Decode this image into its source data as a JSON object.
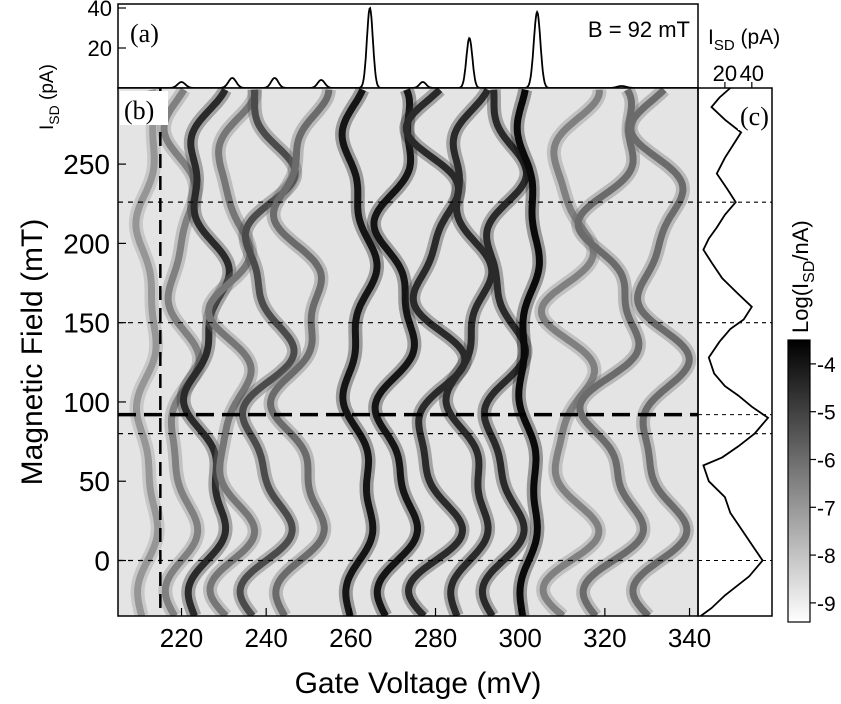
{
  "chart_data": [
    {
      "panel": "(a)",
      "type": "line",
      "ylabel": "I",
      "ylabel_sub": "SD",
      "ylabel_unit": " (pA)",
      "yticks": [
        20,
        40
      ],
      "ylim": [
        0,
        42
      ],
      "xlim": [
        205,
        342
      ],
      "annotation": "B = 92 mT",
      "peaks": [
        {
          "x": 220,
          "y": 3,
          "w": 1.3
        },
        {
          "x": 232,
          "y": 5,
          "w": 1.3
        },
        {
          "x": 242,
          "y": 5,
          "w": 1.2
        },
        {
          "x": 253,
          "y": 4,
          "w": 1.2
        },
        {
          "x": 264.5,
          "y": 40,
          "w": 1.0
        },
        {
          "x": 277,
          "y": 3,
          "w": 1.1
        },
        {
          "x": 288,
          "y": 25,
          "w": 1.0
        },
        {
          "x": 304,
          "y": 38,
          "w": 1.1
        },
        {
          "x": 324,
          "y": 1,
          "w": 1.5
        }
      ]
    },
    {
      "panel": "(b)",
      "type": "heatmap",
      "xlabel": "Gate Voltage (mV)",
      "ylabel": "Magnetic Field (mT)",
      "xticks": [
        220,
        240,
        260,
        280,
        300,
        320,
        340
      ],
      "yticks": [
        0,
        50,
        100,
        150,
        200,
        250
      ],
      "xlim": [
        205,
        342
      ],
      "ylim": [
        -35,
        298
      ],
      "colorbar": {
        "label": "Log(I",
        "label_sub": "SD",
        "label_end": "/nA)",
        "ticks": [
          -4,
          -5,
          -6,
          -7,
          -8,
          -9
        ],
        "range": [
          -9.4,
          -3.5
        ]
      },
      "dashed_lines_mT": [
        0,
        80,
        150,
        226
      ],
      "thick_dashed_line_mT": 92,
      "thick_dashed_vertical_mV": 215,
      "ridges": [
        {
          "x": 212,
          "d": 0.35,
          "a": 2,
          "p": 120
        },
        {
          "x": 220,
          "d": 0.45,
          "a": 3,
          "p": 100
        },
        {
          "x": 226,
          "d": 0.85,
          "a": 4,
          "p": 140
        },
        {
          "x": 232,
          "d": 0.5,
          "a": 4,
          "p": 90
        },
        {
          "x": 240,
          "d": 0.7,
          "a": 5,
          "p": 110
        },
        {
          "x": 248,
          "d": 0.55,
          "a": 5,
          "p": 130
        },
        {
          "x": 262,
          "d": 0.95,
          "a": 3,
          "p": 150
        },
        {
          "x": 271,
          "d": 0.95,
          "a": 4,
          "p": 120
        },
        {
          "x": 280,
          "d": 0.85,
          "a": 5,
          "p": 100
        },
        {
          "x": 288,
          "d": 0.85,
          "a": 4,
          "p": 140
        },
        {
          "x": 296,
          "d": 0.85,
          "a": 4,
          "p": 110
        },
        {
          "x": 302,
          "d": 1.0,
          "a": 2,
          "p": 160
        },
        {
          "x": 312,
          "d": 0.45,
          "a": 5,
          "p": 90
        },
        {
          "x": 322,
          "d": 0.55,
          "a": 6,
          "p": 120
        },
        {
          "x": 333,
          "d": 0.55,
          "a": 5,
          "p": 100
        }
      ]
    },
    {
      "panel": "(c)",
      "type": "line",
      "xlabel": "I",
      "xlabel_sub": "SD",
      "xlabel_unit": " (pA)",
      "xticks": [
        20,
        40
      ],
      "xlim": [
        0,
        55
      ],
      "ylim": [
        -35,
        298
      ],
      "points": [
        [
          2,
          -35
        ],
        [
          10,
          -30
        ],
        [
          20,
          -22
        ],
        [
          38,
          -10
        ],
        [
          48,
          0
        ],
        [
          40,
          10
        ],
        [
          32,
          20
        ],
        [
          24,
          30
        ],
        [
          20,
          40
        ],
        [
          8,
          50
        ],
        [
          4,
          60
        ],
        [
          18,
          65
        ],
        [
          30,
          72
        ],
        [
          42,
          80
        ],
        [
          52,
          90
        ],
        [
          40,
          97
        ],
        [
          30,
          104
        ],
        [
          20,
          110
        ],
        [
          12,
          118
        ],
        [
          8,
          128
        ],
        [
          16,
          138
        ],
        [
          24,
          146
        ],
        [
          34,
          152
        ],
        [
          40,
          160
        ],
        [
          30,
          168
        ],
        [
          18,
          178
        ],
        [
          10,
          188
        ],
        [
          4,
          196
        ],
        [
          8,
          203
        ],
        [
          14,
          210
        ],
        [
          20,
          218
        ],
        [
          28,
          226
        ],
        [
          22,
          234
        ],
        [
          14,
          244
        ],
        [
          20,
          254
        ],
        [
          26,
          262
        ],
        [
          32,
          270
        ],
        [
          20,
          278
        ],
        [
          10,
          286
        ],
        [
          16,
          292
        ],
        [
          24,
          298
        ]
      ]
    }
  ]
}
